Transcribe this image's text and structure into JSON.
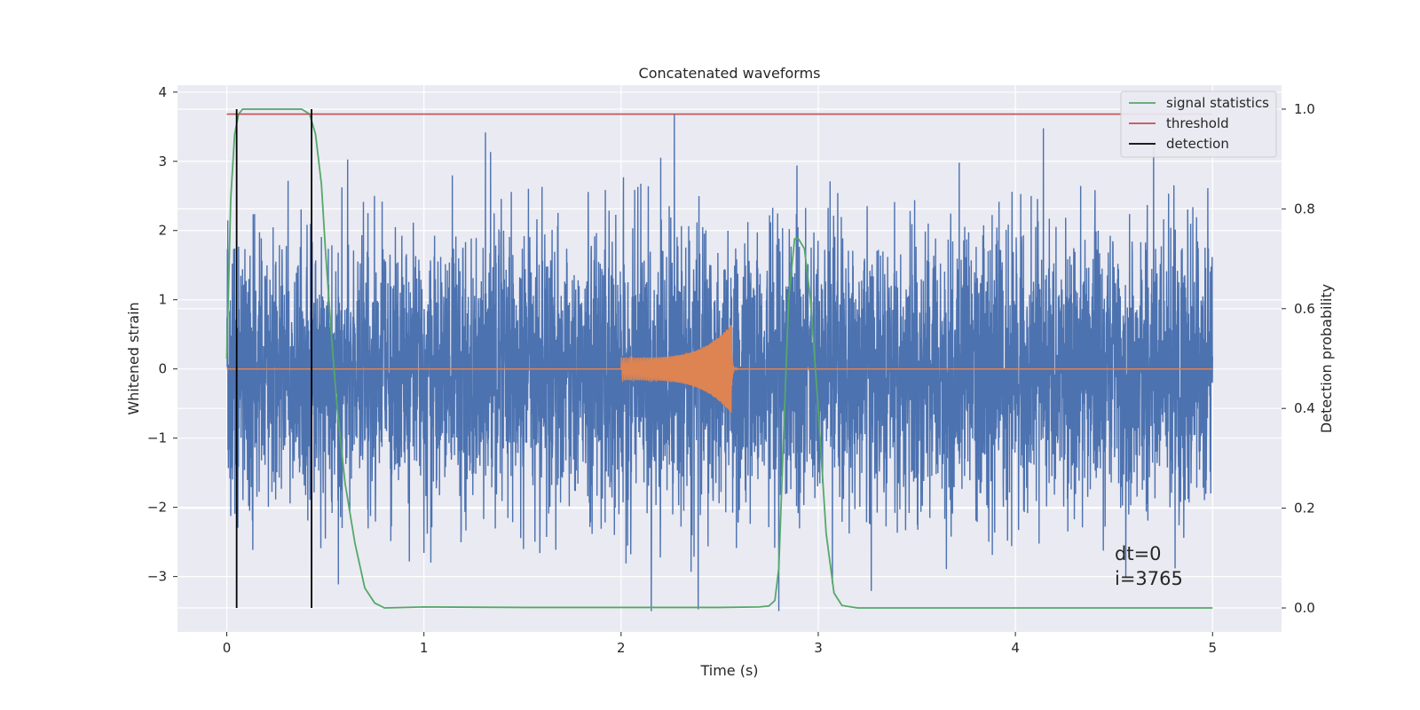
{
  "chart_data": {
    "type": "line",
    "title": "Concatenated waveforms",
    "xlabel": "Time (s)",
    "ylabel": "Whitened strain",
    "y2label": "Detection probability",
    "xlim": [
      -0.25,
      5.35
    ],
    "ylim": [
      -3.8,
      4.1
    ],
    "y2lim": [
      -0.048,
      1.048
    ],
    "xticks": [
      0,
      1,
      2,
      3,
      4,
      5
    ],
    "yticks": [
      -3,
      -2,
      -1,
      0,
      1,
      2,
      3,
      4
    ],
    "y2ticks": [
      0.0,
      0.2,
      0.4,
      0.6,
      0.8,
      1.0
    ],
    "xtick_labels": [
      "0",
      "1",
      "2",
      "3",
      "4",
      "5"
    ],
    "ytick_labels": [
      "−3",
      "−2",
      "−1",
      "0",
      "1",
      "2",
      "3",
      "4"
    ],
    "y2tick_labels": [
      "0.0",
      "0.2",
      "0.4",
      "0.6",
      "0.8",
      "1.0"
    ],
    "grid": true,
    "legend_position": "top-right",
    "legend": [
      {
        "label": "signal statistics",
        "color": "#55a868"
      },
      {
        "label": "threshold",
        "color": "#c44e52"
      },
      {
        "label": "detection",
        "color": "#000000"
      }
    ],
    "series": [
      {
        "color": "#4c72b0",
        "axis": "left",
        "description_free_noise": true,
        "x_range": [
          0,
          5
        ],
        "envelope": [
          -3.5,
          3.75
        ]
      },
      {
        "color": "#dd8452",
        "axis": "left",
        "x_range": [
          0,
          5
        ],
        "chirp": {
          "start": 2.0,
          "end": 2.56,
          "max_amplitude": 0.65
        }
      },
      {
        "name": "signal statistics",
        "color": "#55a868",
        "axis": "right",
        "x": [
          0.0,
          0.02,
          0.04,
          0.06,
          0.08,
          0.1,
          0.15,
          0.2,
          0.3,
          0.38,
          0.42,
          0.45,
          0.48,
          0.5,
          0.53,
          0.56,
          0.6,
          0.65,
          0.7,
          0.75,
          0.8,
          1.0,
          1.5,
          2.0,
          2.5,
          2.7,
          2.75,
          2.78,
          2.8,
          2.82,
          2.85,
          2.88,
          2.9,
          2.93,
          2.96,
          3.0,
          3.04,
          3.08,
          3.12,
          3.2,
          3.5,
          4.0,
          4.5,
          5.0
        ],
        "y": [
          0.5,
          0.82,
          0.95,
          0.99,
          1.0,
          1.0,
          1.0,
          1.0,
          1.0,
          1.0,
          0.99,
          0.95,
          0.85,
          0.72,
          0.55,
          0.4,
          0.25,
          0.13,
          0.04,
          0.01,
          0.0,
          0.002,
          0.001,
          0.001,
          0.001,
          0.002,
          0.004,
          0.015,
          0.08,
          0.3,
          0.62,
          0.74,
          0.74,
          0.72,
          0.62,
          0.4,
          0.15,
          0.03,
          0.005,
          0.0,
          0.0,
          0.0,
          0.0,
          0.0
        ]
      },
      {
        "name": "threshold",
        "color": "#c44e52",
        "axis": "right",
        "x": [
          0,
          5
        ],
        "y": [
          0.99,
          0.99
        ]
      }
    ],
    "detections": [
      0.05,
      0.43
    ],
    "detection_range": [
      0.0,
      1.0
    ],
    "annotations": [
      "dt=0",
      "i=3765"
    ]
  }
}
